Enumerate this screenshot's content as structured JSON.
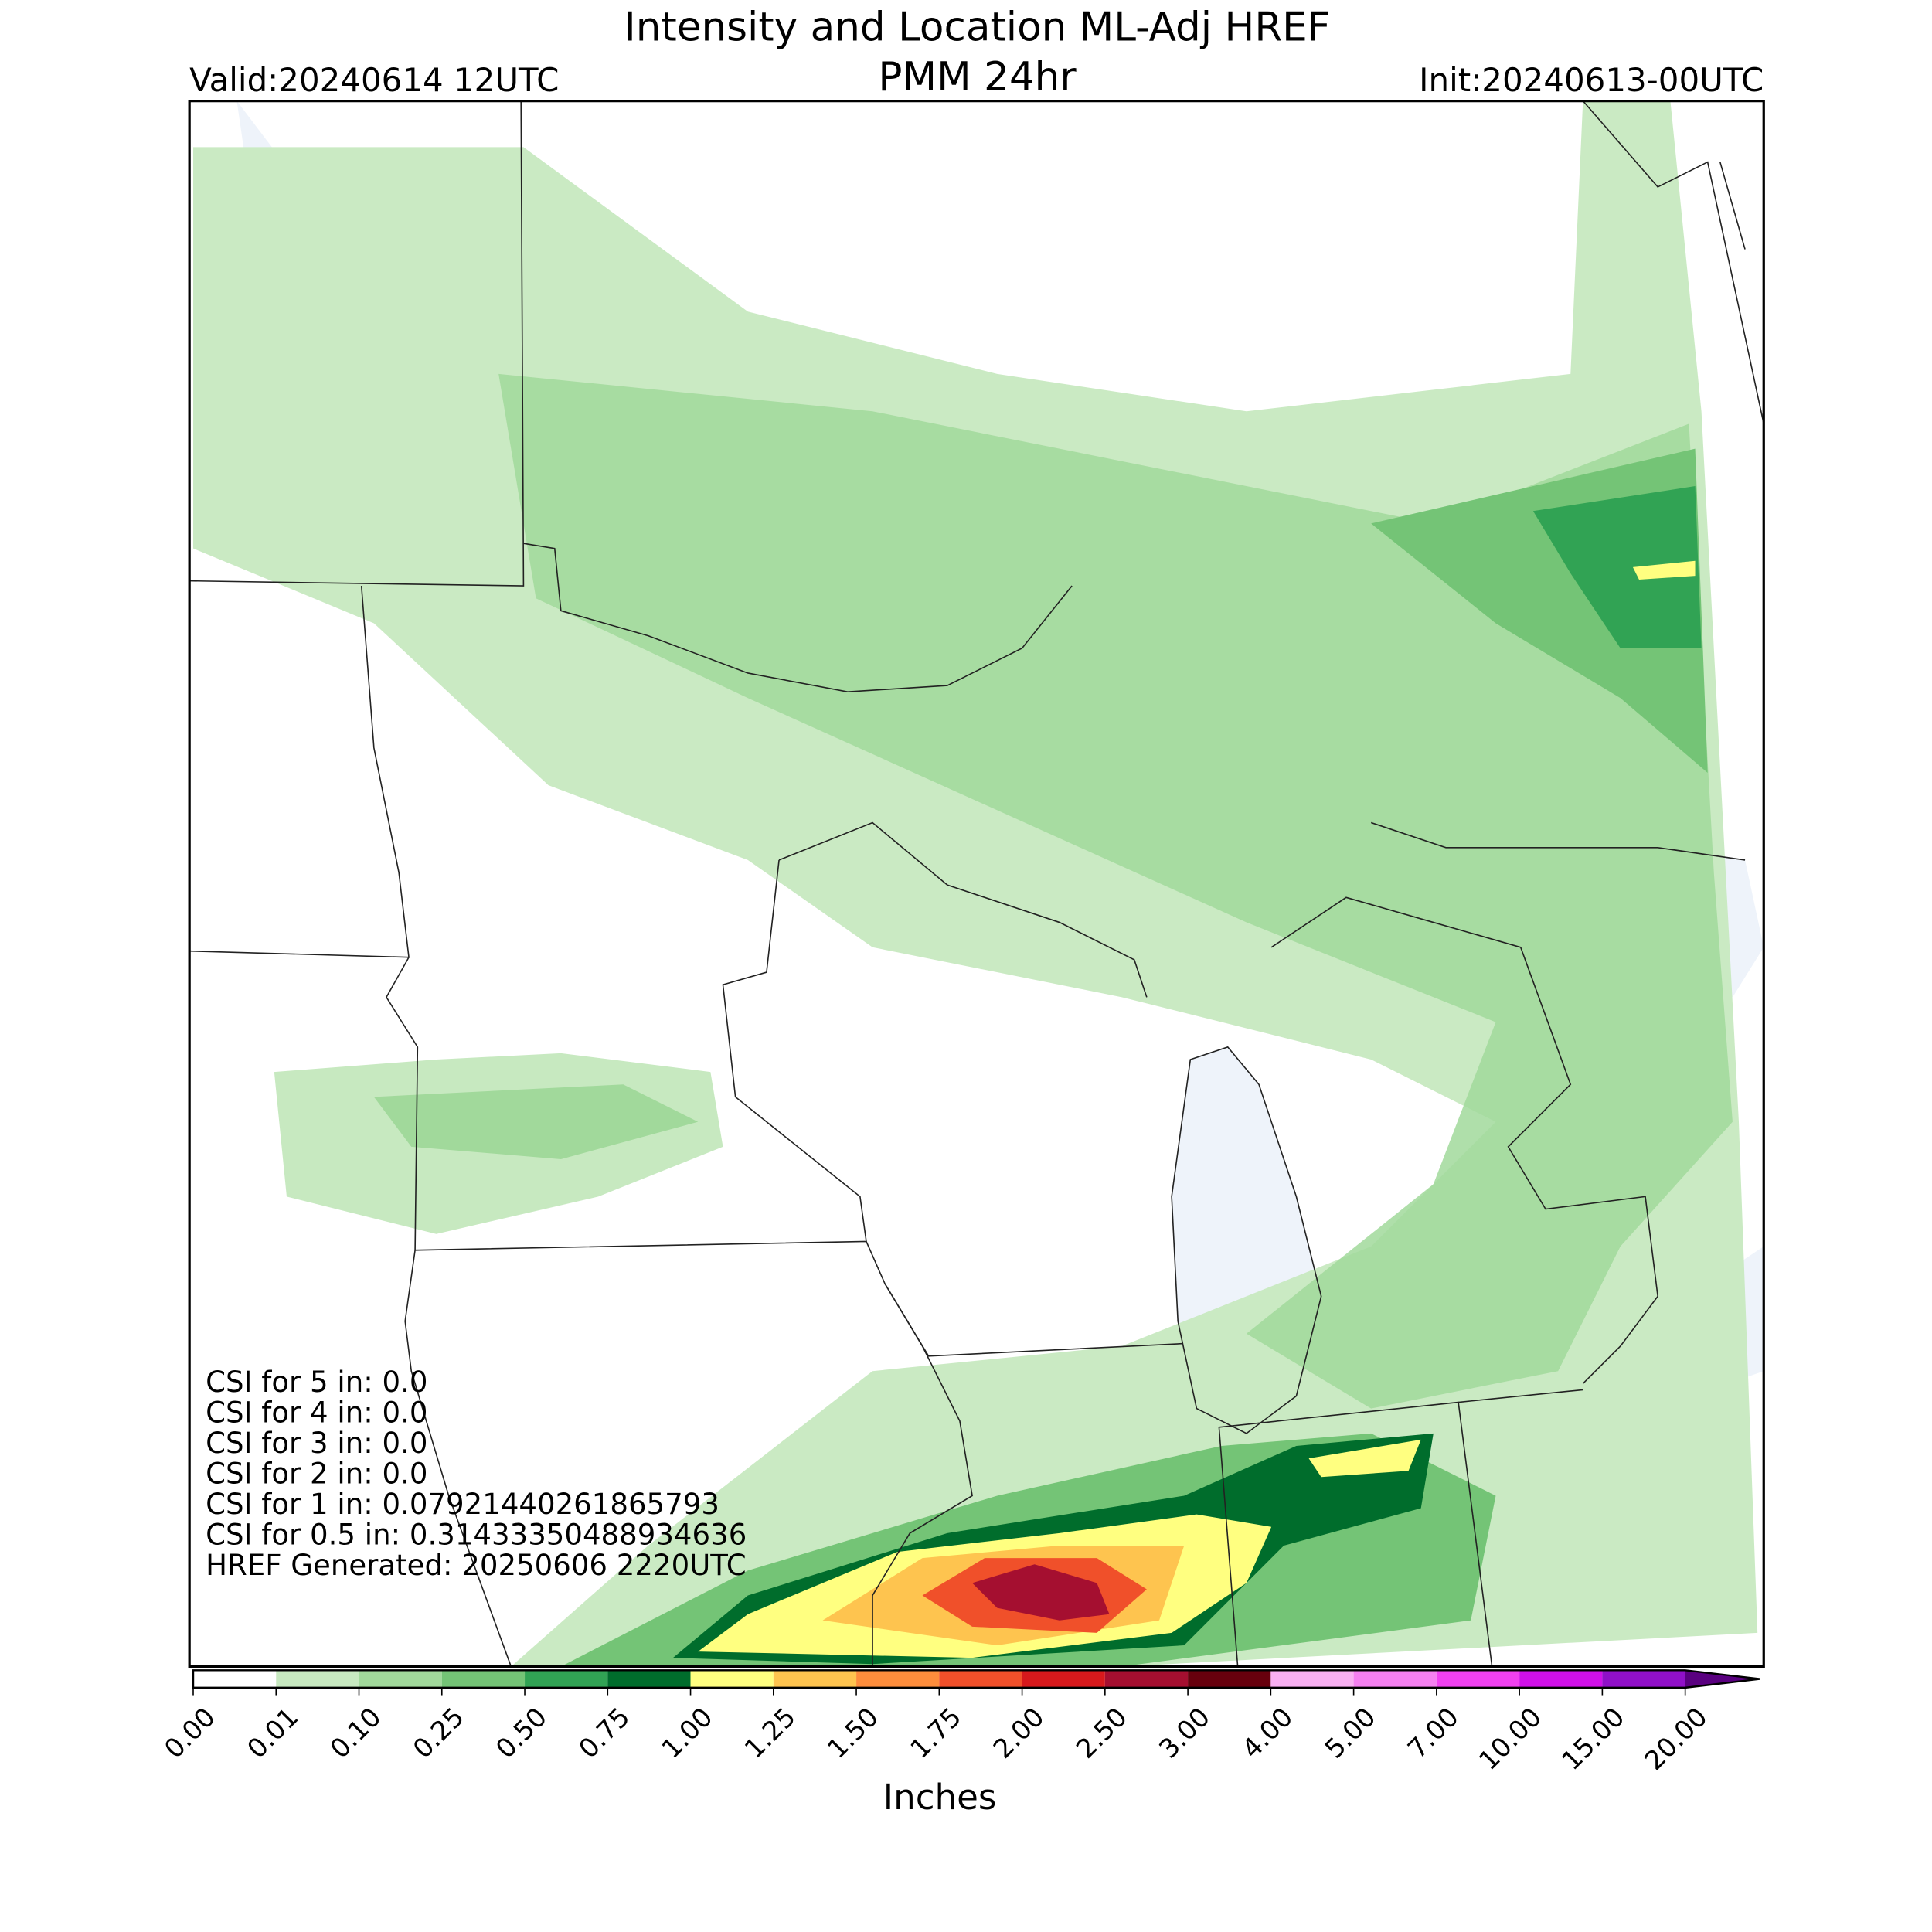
{
  "title": "Intensity and Location ML-Adj HREF",
  "subtitle": "PMM 24hr",
  "valid": "Valid:20240614 12UTC",
  "init": "Init:20240613-00UTC",
  "csi": [
    "CSI for 5 in: 0.0",
    "CSI for 4 in: 0.0",
    "CSI for 3 in: 0.0",
    "CSI for 2 in: 0.0",
    "CSI for 1 in: 0.07921440261865793",
    "CSI for 0.5 in: 0.31433350488934636",
    "HREF Generated: 20250606 2220UTC"
  ],
  "colorbar": {
    "label": "Inches",
    "ticks": [
      {
        "value": 0,
        "label": "0.00"
      },
      {
        "value": 0.01,
        "label": "0.01"
      },
      {
        "value": 0.1,
        "label": "0.10"
      },
      {
        "value": 0.25,
        "label": "0.25"
      },
      {
        "value": 0.5,
        "label": "0.50"
      },
      {
        "value": 0.75,
        "label": "0.75"
      },
      {
        "value": 1,
        "label": "1.00"
      },
      {
        "value": 1.25,
        "label": "1.25"
      },
      {
        "value": 1.5,
        "label": "1.50"
      },
      {
        "value": 1.75,
        "label": "1.75"
      },
      {
        "value": 2,
        "label": "2.00"
      },
      {
        "value": 2.5,
        "label": "2.50"
      },
      {
        "value": 3,
        "label": "3.00"
      },
      {
        "value": 4,
        "label": "4.00"
      },
      {
        "value": 5,
        "label": "5.00"
      },
      {
        "value": 7,
        "label": "7.00"
      },
      {
        "value": 10,
        "label": "10.00"
      },
      {
        "value": 15,
        "label": "15.00"
      },
      {
        "value": 20,
        "label": "20.00"
      }
    ],
    "colors": [
      "#ffffff",
      "#c7e9c0",
      "#a1d99b",
      "#74c476",
      "#31a354",
      "#006d2c",
      "#ffff80",
      "#fec44f",
      "#fd8d3c",
      "#f0502a",
      "#d7191c",
      "#a50f30",
      "#67000d",
      "#f9b0f2",
      "#f580f0",
      "#f040f0",
      "#d010e8",
      "#9010c8"
    ],
    "extend_color": "#5a0080"
  }
}
